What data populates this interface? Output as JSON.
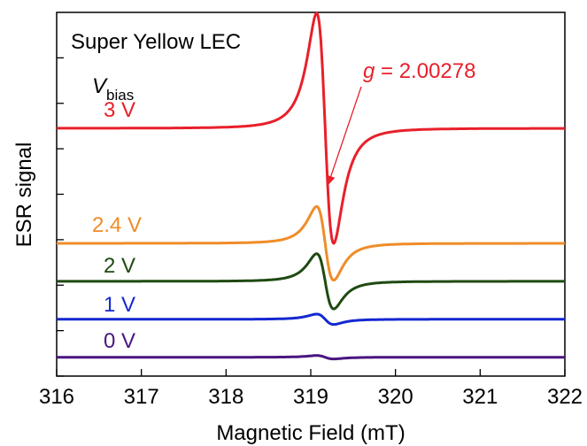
{
  "chart_data": {
    "type": "line",
    "title": "Super Yellow LEC",
    "xlabel": "Magnetic Field (mT)",
    "ylabel": "ESR signal",
    "xlim": [
      316,
      322
    ],
    "x_ticks": [
      "316",
      "317",
      "318",
      "319",
      "320",
      "321",
      "322"
    ],
    "y_ticks_labeled": false,
    "grid": false,
    "legend_title_main": "V",
    "legend_title_sub": "bias",
    "peak": {
      "center": 319.17,
      "peak_field": 319.0,
      "trough_field": 319.35
    },
    "series": [
      {
        "name": "3 V",
        "color": "#e8202a",
        "baseline": 1.0,
        "amplitude": 1.0
      },
      {
        "name": "2.4 V",
        "color": "#f08c28",
        "baseline": 0.0,
        "amplitude": 0.32
      },
      {
        "name": "2 V",
        "color": "#1f4a12",
        "baseline": -0.33,
        "amplitude": 0.24
      },
      {
        "name": "1 V",
        "color": "#1428d0",
        "baseline": -0.66,
        "amplitude": 0.045
      },
      {
        "name": "0 V",
        "color": "#4a1580",
        "baseline": -0.99,
        "amplitude": 0.015
      }
    ],
    "annotation": {
      "prefix": "g",
      "text": " = 2.00278",
      "color": "#e8202a",
      "target_series": "3 V",
      "target_field": 319.2
    }
  }
}
